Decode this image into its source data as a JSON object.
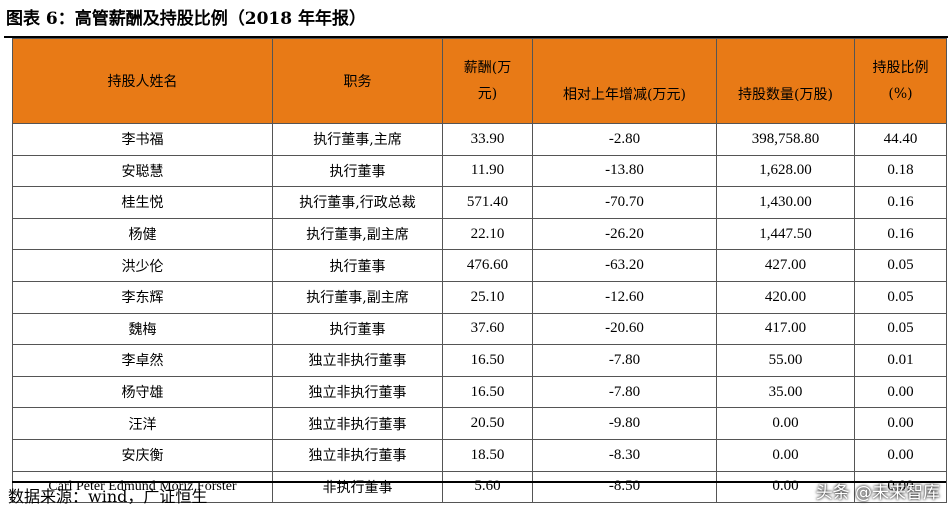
{
  "title": "图表 6：高管薪酬及持股比例（2018 年年报）",
  "headers": {
    "name": "持股人姓名",
    "position": "职务",
    "salary_line1": "薪酬(万",
    "salary_line2": "元)",
    "change": "相对上年增减(万元)",
    "shares": "持股数量(万股)",
    "ratio_line1": "持股比例",
    "ratio_line2": "(%)"
  },
  "rows": [
    {
      "name": "李书福",
      "position": "执行董事,主席",
      "salary": "33.90",
      "change": "-2.80",
      "shares": "398,758.80",
      "ratio": "44.40"
    },
    {
      "name": "安聪慧",
      "position": "执行董事",
      "salary": "11.90",
      "change": "-13.80",
      "shares": "1,628.00",
      "ratio": "0.18"
    },
    {
      "name": "桂生悦",
      "position": "执行董事,行政总裁",
      "salary": "571.40",
      "change": "-70.70",
      "shares": "1,430.00",
      "ratio": "0.16"
    },
    {
      "name": "杨健",
      "position": "执行董事,副主席",
      "salary": "22.10",
      "change": "-26.20",
      "shares": "1,447.50",
      "ratio": "0.16"
    },
    {
      "name": "洪少伦",
      "position": "执行董事",
      "salary": "476.60",
      "change": "-63.20",
      "shares": "427.00",
      "ratio": "0.05"
    },
    {
      "name": "李东辉",
      "position": "执行董事,副主席",
      "salary": "25.10",
      "change": "-12.60",
      "shares": "420.00",
      "ratio": "0.05"
    },
    {
      "name": "魏梅",
      "position": "执行董事",
      "salary": "37.60",
      "change": "-20.60",
      "shares": "417.00",
      "ratio": "0.05"
    },
    {
      "name": "李卓然",
      "position": "独立非执行董事",
      "salary": "16.50",
      "change": "-7.80",
      "shares": "55.00",
      "ratio": "0.01"
    },
    {
      "name": "杨守雄",
      "position": "独立非执行董事",
      "salary": "16.50",
      "change": "-7.80",
      "shares": "35.00",
      "ratio": "0.00"
    },
    {
      "name": "汪洋",
      "position": "独立非执行董事",
      "salary": "20.50",
      "change": "-9.80",
      "shares": "0.00",
      "ratio": "0.00"
    },
    {
      "name": "安庆衡",
      "position": "独立非执行董事",
      "salary": "18.50",
      "change": "-8.30",
      "shares": "0.00",
      "ratio": "0.00"
    },
    {
      "name": "Carl Peter Edmund Moriz Forster",
      "position": "非执行董事",
      "salary": "5.60",
      "change": "-8.50",
      "shares": "0.00",
      "ratio": "0.00"
    }
  ],
  "source": "数据来源：wind，广证恒生",
  "watermark": "头条 @未来智库"
}
